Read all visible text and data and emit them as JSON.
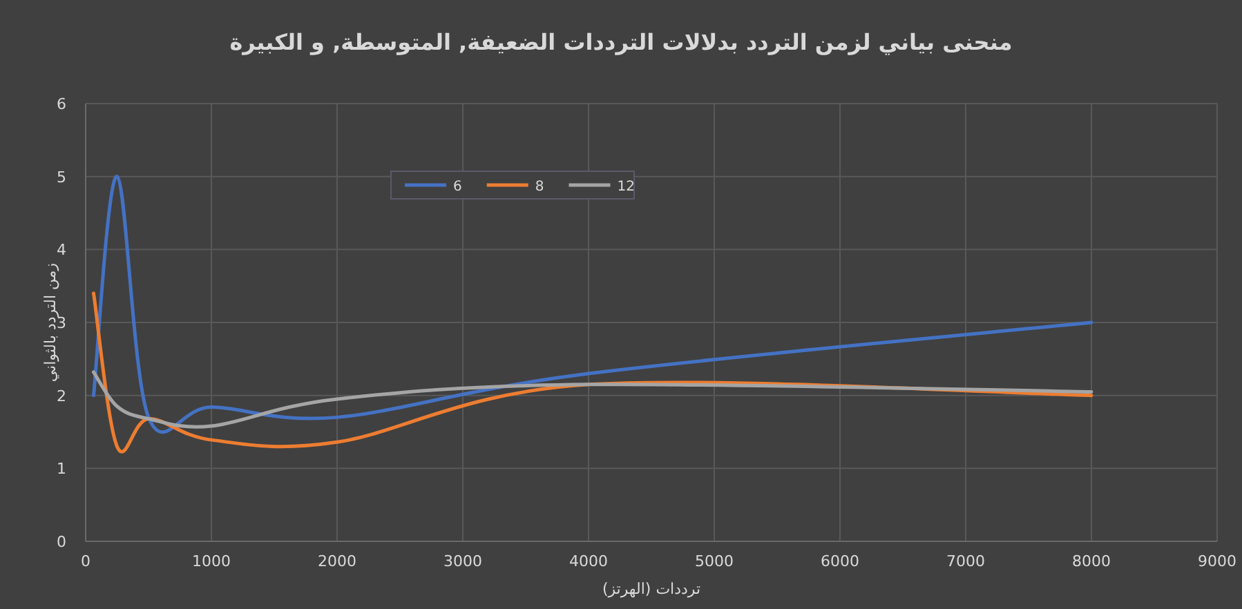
{
  "chart_data": {
    "type": "line",
    "title": "منحنى بياني لزمن التردد بدلالات الترددات الضعيفة, المتوسطة, و الكبيرة",
    "xlabel": "ترددات (الهرتز)",
    "ylabel": "زمن التردد بالثواني",
    "xlim": [
      0,
      9000
    ],
    "ylim": [
      0,
      6
    ],
    "xticks": [
      0,
      1000,
      2000,
      3000,
      4000,
      5000,
      6000,
      7000,
      8000,
      9000
    ],
    "yticks": [
      0,
      1,
      2,
      3,
      4,
      5,
      6
    ],
    "grid": true,
    "legend": "top",
    "marker": "none",
    "line_style": "solid",
    "x": [
      63,
      250,
      500,
      1000,
      2000,
      4000,
      8000
    ],
    "series": [
      {
        "name": "6",
        "color": "#4472c4",
        "values": [
          2.0,
          5.0,
          1.7,
          1.84,
          1.7,
          2.3,
          3.0
        ]
      },
      {
        "name": "8",
        "color": "#ed7d31",
        "values": [
          3.4,
          1.3,
          1.68,
          1.39,
          1.36,
          2.15,
          2.0
        ]
      },
      {
        "name": "12",
        "color": "#a5a5a5",
        "values": [
          2.32,
          1.85,
          1.68,
          1.58,
          1.95,
          2.15,
          2.05
        ]
      }
    ]
  }
}
